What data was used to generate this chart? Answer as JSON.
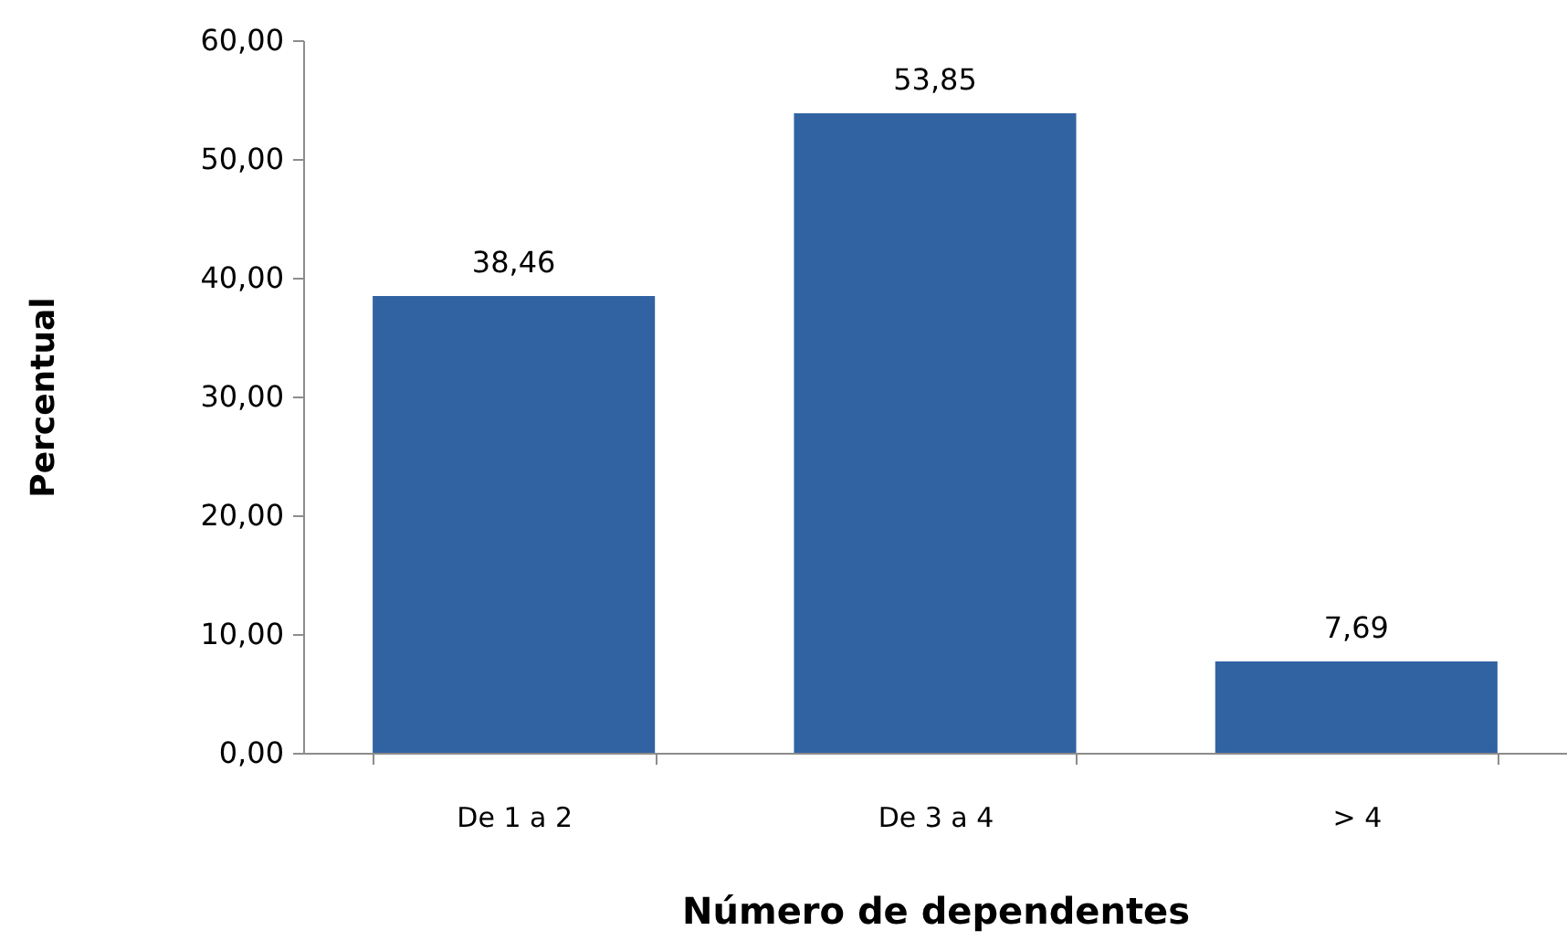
{
  "chart_data": {
    "type": "bar",
    "xlabel": "Número de dependentes",
    "ylabel": "Percentual",
    "categories": [
      "De 1 a 2",
      "De 3 a 4",
      "> 4"
    ],
    "values": [
      38.46,
      53.85,
      7.69
    ],
    "value_labels": [
      "38,46",
      "53,85",
      "7,69"
    ],
    "color": "#3163a3",
    "ylim": [
      0,
      60
    ],
    "yticks": [
      {
        "value": 0,
        "label": "0,00"
      },
      {
        "value": 10,
        "label": "10,00"
      },
      {
        "value": 20,
        "label": "20,00"
      },
      {
        "value": 30,
        "label": "30,00"
      },
      {
        "value": 40,
        "label": "40,00"
      },
      {
        "value": 50,
        "label": "50,00"
      },
      {
        "value": 60,
        "label": "60,00"
      }
    ]
  }
}
